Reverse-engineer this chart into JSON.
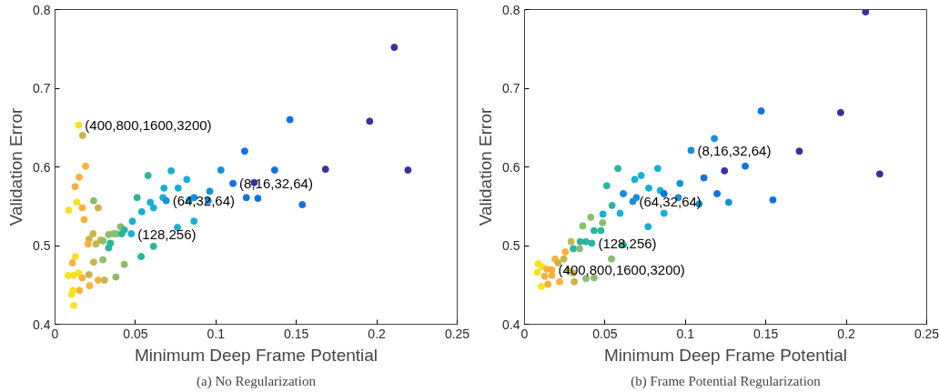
{
  "chart_data": [
    {
      "type": "scatter",
      "xlabel": "Minimum Deep Frame Potential",
      "ylabel": "Validation Error",
      "marker": "circle",
      "grid": false,
      "xlim": [
        0,
        0.25
      ],
      "ylim": [
        0.4,
        0.8
      ],
      "xticks": [
        0,
        0.05,
        0.1,
        0.15,
        0.2,
        0.25
      ],
      "yticks": [
        0.4,
        0.5,
        0.6,
        0.7,
        0.8
      ],
      "x": [
        0.0146,
        0.0171,
        0.019,
        0.015,
        0.0124,
        0.0136,
        0.0085,
        0.0169,
        0.0181,
        0.024,
        0.0268,
        0.0236,
        0.0211,
        0.0205,
        0.0254,
        0.0283,
        0.0299,
        0.0333,
        0.0362,
        0.0382,
        0.0407,
        0.0415,
        0.0431,
        0.0344,
        0.0333,
        0.0297,
        0.024,
        0.0431,
        0.0378,
        0.0126,
        0.0108,
        0.0081,
        0.0116,
        0.0146,
        0.0169,
        0.0211,
        0.0215,
        0.0268,
        0.0307,
        0.0152,
        0.0112,
        0.0102,
        0.0116,
        0.0481,
        0.0474,
        0.051,
        0.0539,
        0.0535,
        0.0578,
        0.0592,
        0.0612,
        0.0612,
        0.0677,
        0.0671,
        0.0691,
        0.0722,
        0.0765,
        0.0761,
        0.0819,
        0.0834,
        0.0864,
        0.0864,
        0.0952,
        0.0962,
        0.1031,
        0.1106,
        0.1179,
        0.1238,
        0.1189,
        0.1261,
        0.146,
        0.1365,
        0.1537,
        0.1681,
        0.1956,
        0.2109,
        0.2194
      ],
      "values": [
        0.653,
        0.64,
        0.601,
        0.587,
        0.575,
        0.555,
        0.545,
        0.548,
        0.533,
        0.557,
        0.548,
        0.515,
        0.508,
        0.502,
        0.502,
        0.507,
        0.506,
        0.514,
        0.515,
        0.515,
        0.524,
        0.515,
        0.52,
        0.503,
        0.497,
        0.482,
        0.479,
        0.476,
        0.46,
        0.486,
        0.478,
        0.462,
        0.462,
        0.465,
        0.459,
        0.463,
        0.449,
        0.456,
        0.456,
        0.443,
        0.443,
        0.438,
        0.424,
        0.531,
        0.515,
        0.561,
        0.543,
        0.486,
        0.589,
        0.555,
        0.548,
        0.499,
        0.573,
        0.561,
        0.557,
        0.595,
        0.573,
        0.523,
        0.584,
        0.558,
        0.561,
        0.531,
        0.557,
        0.569,
        0.596,
        0.579,
        0.62,
        0.58,
        0.561,
        0.56,
        0.66,
        0.596,
        0.552,
        0.597,
        0.658,
        0.752,
        0.596
      ],
      "colors": [
        "#f8e21d",
        "#c8b449",
        "#fbb13c",
        "#fbb13c",
        "#fbb13c",
        "#f8e21d",
        "#f8e21d",
        "#fbb13c",
        "#fbb13c",
        "#8bbd6c",
        "#c8b449",
        "#c8b449",
        "#c8b449",
        "#fbb13c",
        "#c8b449",
        "#c8b449",
        "#8bbd6c",
        "#8bbd6c",
        "#8bbd6c",
        "#8bbd6c",
        "#8bbd6c",
        "#2cb59e",
        "#2cb59e",
        "#2cb59e",
        "#2cb59e",
        "#8bbd6c",
        "#c8b449",
        "#8bbd6c",
        "#8bbd6c",
        "#f8e21d",
        "#fbb13c",
        "#f8e21d",
        "#f8e21d",
        "#f8e21d",
        "#fbb13c",
        "#c8b449",
        "#fbb13c",
        "#fbb13c",
        "#c8b449",
        "#fbb13c",
        "#f8e21d",
        "#f8e21d",
        "#f8e21d",
        "#16b0d2",
        "#16b0d2",
        "#2cb59e",
        "#16b0d2",
        "#2cb59e",
        "#2cb59e",
        "#16b0d2",
        "#16b0d2",
        "#2cb59e",
        "#16b0d2",
        "#16b0d2",
        "#1690dc",
        "#16b0d2",
        "#16b0d2",
        "#16b0d2",
        "#16b0d2",
        "#16b0d2",
        "#1690dc",
        "#16b0d2",
        "#1690dc",
        "#1690dc",
        "#1690dc",
        "#0f72e3",
        "#0f72e3",
        "#35329b",
        "#0f72e3",
        "#0f72e3",
        "#0f72e3",
        "#0f72e3",
        "#0f72e3",
        "#35329b",
        "#35329b",
        "#35329b",
        "#35329b"
      ],
      "annotations": [
        {
          "text": "(400,800,1600,3200)",
          "x": 0.0146,
          "y": 0.653
        },
        {
          "text": "(8,16,32,64)",
          "x": 0.1106,
          "y": 0.579
        },
        {
          "text": "(64,32,64)",
          "x": 0.0691,
          "y": 0.557
        },
        {
          "text": "(128,256)",
          "x": 0.0474,
          "y": 0.515
        },
        "(a) No Regularization"
      ]
    },
    {
      "type": "scatter",
      "xlabel": "Minimum Deep Frame Potential",
      "ylabel": "Validation Error",
      "marker": "circle",
      "grid": false,
      "xlim": [
        0,
        0.25
      ],
      "ylim": [
        0.4,
        0.8
      ],
      "xticks": [
        0,
        0.05,
        0.1,
        0.15,
        0.2,
        0.25
      ],
      "yticks": [
        0.4,
        0.5,
        0.6,
        0.7,
        0.8
      ],
      "x": [
        0.0085,
        0.0079,
        0.0109,
        0.0139,
        0.017,
        0.0125,
        0.017,
        0.0105,
        0.0145,
        0.019,
        0.0218,
        0.0208,
        0.0253,
        0.0289,
        0.0303,
        0.0342,
        0.0346,
        0.0382,
        0.0418,
        0.0362,
        0.0412,
        0.0432,
        0.0475,
        0.0485,
        0.0487,
        0.0511,
        0.0544,
        0.058,
        0.0594,
        0.0614,
        0.0614,
        0.054,
        0.0244,
        0.0303,
        0.0382,
        0.0432,
        0.0309,
        0.0273,
        0.0673,
        0.0685,
        0.0695,
        0.0725,
        0.0772,
        0.0768,
        0.0828,
        0.0844,
        0.0867,
        0.0867,
        0.0966,
        0.0956,
        0.1035,
        0.1085,
        0.1115,
        0.118,
        0.1197,
        0.1243,
        0.1269,
        0.1372,
        0.1471,
        0.1544,
        0.1708,
        0.1965,
        0.212,
        0.2208
      ],
      "values": [
        0.477,
        0.466,
        0.473,
        0.47,
        0.469,
        0.461,
        0.462,
        0.448,
        0.451,
        0.483,
        0.454,
        0.478,
        0.492,
        0.505,
        0.496,
        0.496,
        0.505,
        0.505,
        0.503,
        0.525,
        0.536,
        0.519,
        0.519,
        0.529,
        0.54,
        0.576,
        0.551,
        0.598,
        0.541,
        0.566,
        0.501,
        0.483,
        0.483,
        0.465,
        0.458,
        0.459,
        0.454,
        0.468,
        0.556,
        0.584,
        0.561,
        0.589,
        0.573,
        0.524,
        0.598,
        0.57,
        0.566,
        0.541,
        0.579,
        0.561,
        0.621,
        0.553,
        0.586,
        0.636,
        0.566,
        0.595,
        0.555,
        0.601,
        0.671,
        0.558,
        0.62,
        0.669,
        0.797,
        0.591
      ],
      "colors": [
        "#f8e21d",
        "#f8e21d",
        "#f8e21d",
        "#fbb13c",
        "#fbb13c",
        "#fbb13c",
        "#fbb13c",
        "#f8e21d",
        "#fbb13c",
        "#fbb13c",
        "#fbb13c",
        "#c8b449",
        "#fbb13c",
        "#c8b449",
        "#2cb59e",
        "#8bbd6c",
        "#2cb59e",
        "#2cb59e",
        "#2cb59e",
        "#8bbd6c",
        "#8bbd6c",
        "#2cb59e",
        "#2cb59e",
        "#8bbd6c",
        "#16b0d2",
        "#2cb59e",
        "#2cb59e",
        "#2cb59e",
        "#16b0d2",
        "#1690dc",
        "#2cb59e",
        "#8bbd6c",
        "#c8b449",
        "#c8b449",
        "#8bbd6c",
        "#8bbd6c",
        "#c8b449",
        "#c8b449",
        "#1690dc",
        "#16b0d2",
        "#1690dc",
        "#16b0d2",
        "#16b0d2",
        "#16b0d2",
        "#16b0d2",
        "#16b0d2",
        "#0f72e3",
        "#16b0d2",
        "#1690dc",
        "#1690dc",
        "#1690dc",
        "#1690dc",
        "#0f72e3",
        "#1690dc",
        "#0f72e3",
        "#35329b",
        "#1690dc",
        "#0f72e3",
        "#0f72e3",
        "#0f72e3",
        "#35329b",
        "#35329b",
        "#35329b",
        "#35329b"
      ],
      "annotations": [
        {
          "text": "(8,16,32,64)",
          "x": 0.1035,
          "y": 0.621
        },
        {
          "text": "(64,32,64)",
          "x": 0.0673,
          "y": 0.556
        },
        {
          "text": "(128,256)",
          "x": 0.0418,
          "y": 0.503
        },
        {
          "text": "(400,800,1600,3200)",
          "x": 0.017,
          "y": 0.469
        },
        "(b) Frame Potential Regularization"
      ]
    }
  ]
}
